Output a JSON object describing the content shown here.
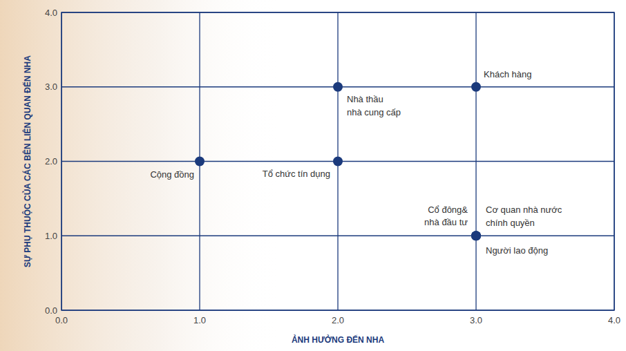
{
  "chart_data": {
    "type": "scatter",
    "x_label": "ẢNH HƯỞNG ĐẾN NHA",
    "y_label": "SỰ PHỤ THUỘC CỦA CÁC BÊN LIÊN QUAN ĐẾN NHA",
    "x": [
      3,
      2,
      1,
      2,
      3,
      3,
      3
    ],
    "values": [
      3,
      3,
      2,
      2,
      1,
      1,
      1
    ],
    "labels": [
      [
        "Khách hàng"
      ],
      [
        "Nhà thầu",
        "nhà cung cấp"
      ],
      [
        "Cộng đồng"
      ],
      [
        "Tổ chức tín dụng"
      ],
      [
        "Cổ đông&",
        "nhà đầu tư"
      ],
      [
        "Cơ quan nhà nước",
        "chính quyền"
      ],
      [
        "Người lao động"
      ]
    ],
    "color": "#1b3a7c",
    "marker": "circle",
    "xlim": [
      0,
      4
    ],
    "ylim": [
      0,
      4
    ],
    "xticks": [
      {
        "value": 0,
        "label": "0.0"
      },
      {
        "value": 1,
        "label": "1.0"
      },
      {
        "value": 2,
        "label": "2.0"
      },
      {
        "value": 3,
        "label": "3.0"
      },
      {
        "value": 4,
        "label": "4.0"
      }
    ],
    "yticks": [
      {
        "value": 0,
        "label": "0.0"
      },
      {
        "value": 1,
        "label": "1.0"
      },
      {
        "value": 2,
        "label": "2.0"
      },
      {
        "value": 3,
        "label": "3.0"
      },
      {
        "value": 4,
        "label": "4.0"
      }
    ],
    "grid": true
  }
}
